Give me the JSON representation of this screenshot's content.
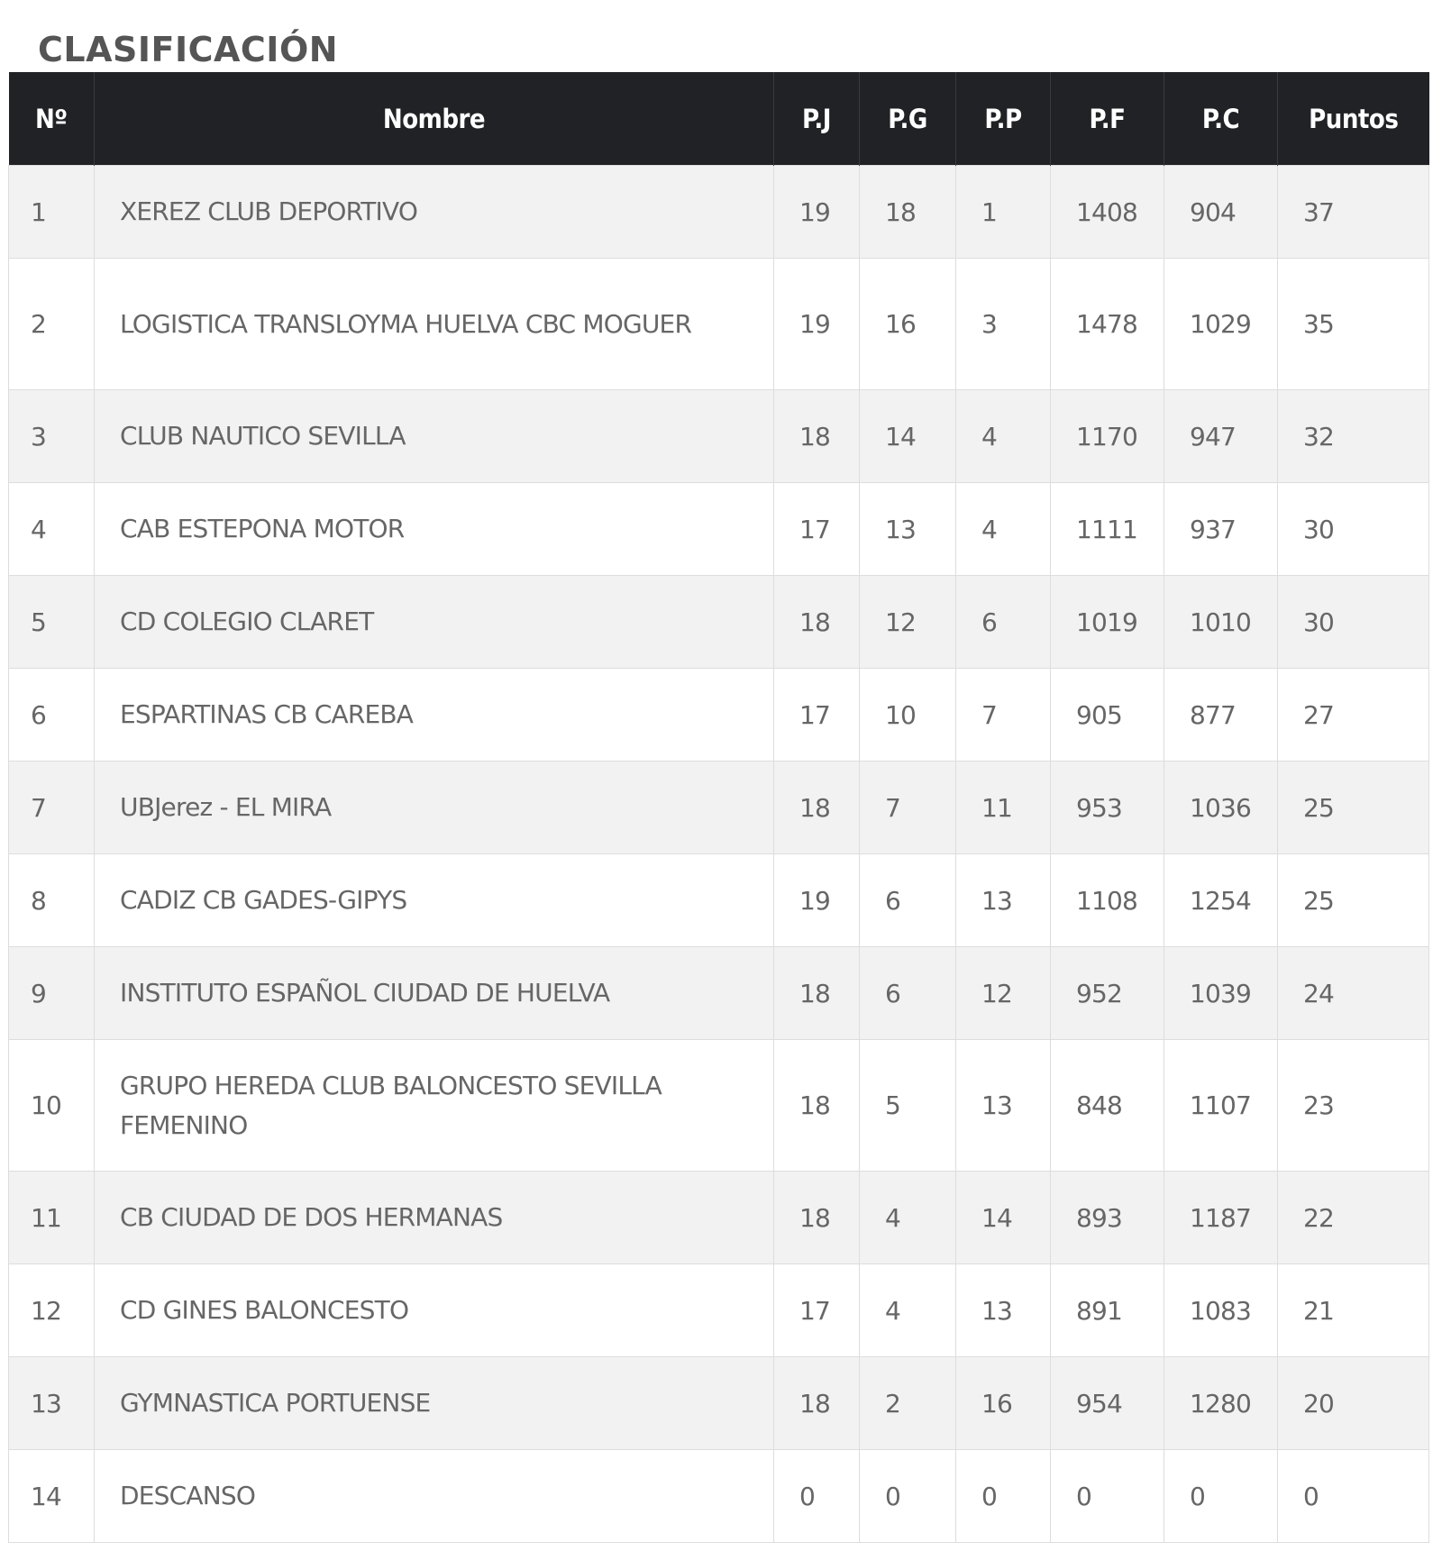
{
  "page": {
    "title": "CLASIFICACIÓN"
  },
  "table": {
    "headers": {
      "no": "Nº",
      "name": "Nombre",
      "pj": "P.J",
      "pg": "P.G",
      "pp": "P.P",
      "pf": "P.F",
      "pc": "P.C",
      "pts": "Puntos"
    },
    "rows": [
      {
        "no": "1",
        "name": "XEREZ CLUB DEPORTIVO",
        "pj": "19",
        "pg": "18",
        "pp": "1",
        "pf": "1408",
        "pc": "904",
        "pts": "37"
      },
      {
        "no": "2",
        "name": "LOGISTICA TRANSLOYMA HUELVA CBC MOGUER",
        "pj": "19",
        "pg": "16",
        "pp": "3",
        "pf": "1478",
        "pc": "1029",
        "pts": "35"
      },
      {
        "no": "3",
        "name": "CLUB NAUTICO SEVILLA",
        "pj": "18",
        "pg": "14",
        "pp": "4",
        "pf": "1170",
        "pc": "947",
        "pts": "32"
      },
      {
        "no": "4",
        "name": "CAB ESTEPONA MOTOR",
        "pj": "17",
        "pg": "13",
        "pp": "4",
        "pf": "1111",
        "pc": "937",
        "pts": "30"
      },
      {
        "no": "5",
        "name": "CD COLEGIO CLARET",
        "pj": "18",
        "pg": "12",
        "pp": "6",
        "pf": "1019",
        "pc": "1010",
        "pts": "30"
      },
      {
        "no": "6",
        "name": "ESPARTINAS CB CAREBA",
        "pj": "17",
        "pg": "10",
        "pp": "7",
        "pf": "905",
        "pc": "877",
        "pts": "27"
      },
      {
        "no": "7",
        "name": "UBJerez - EL MIRA",
        "pj": "18",
        "pg": "7",
        "pp": "11",
        "pf": "953",
        "pc": "1036",
        "pts": "25"
      },
      {
        "no": "8",
        "name": "CADIZ CB GADES-GIPYS",
        "pj": "19",
        "pg": "6",
        "pp": "13",
        "pf": "1108",
        "pc": "1254",
        "pts": "25"
      },
      {
        "no": "9",
        "name": "INSTITUTO ESPAÑOL CIUDAD DE HUELVA",
        "pj": "18",
        "pg": "6",
        "pp": "12",
        "pf": "952",
        "pc": "1039",
        "pts": "24"
      },
      {
        "no": "10",
        "name": "GRUPO HEREDA CLUB BALONCESTO SEVILLA FEMENINO",
        "pj": "18",
        "pg": "5",
        "pp": "13",
        "pf": "848",
        "pc": "1107",
        "pts": "23"
      },
      {
        "no": "11",
        "name": "CB CIUDAD DE DOS HERMANAS",
        "pj": "18",
        "pg": "4",
        "pp": "14",
        "pf": "893",
        "pc": "1187",
        "pts": "22"
      },
      {
        "no": "12",
        "name": "CD GINES BALONCESTO",
        "pj": "17",
        "pg": "4",
        "pp": "13",
        "pf": "891",
        "pc": "1083",
        "pts": "21"
      },
      {
        "no": "13",
        "name": "GYMNASTICA PORTUENSE",
        "pj": "18",
        "pg": "2",
        "pp": "16",
        "pf": "954",
        "pc": "1280",
        "pts": "20"
      },
      {
        "no": "14",
        "name": "DESCANSO",
        "pj": "0",
        "pg": "0",
        "pp": "0",
        "pf": "0",
        "pc": "0",
        "pts": "0"
      }
    ]
  },
  "colors": {
    "header_bg": "#212226",
    "header_text": "#ffffff",
    "row_stripe": "#f2f2f2",
    "row_plain": "#ffffff",
    "cell_text": "#666666",
    "title_text": "#555555",
    "grid_line": "#dddddd"
  }
}
